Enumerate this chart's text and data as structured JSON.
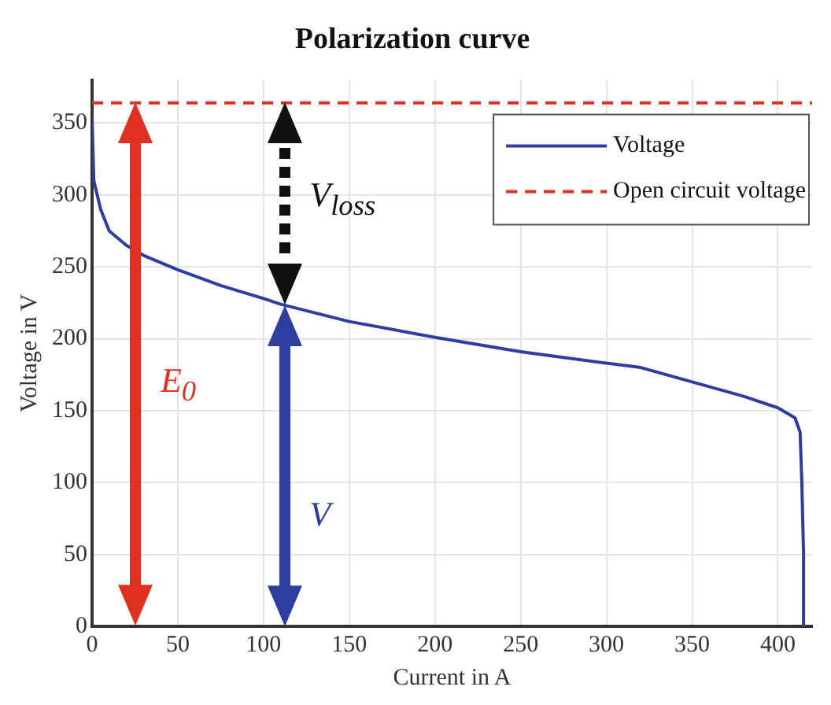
{
  "chart_data": {
    "type": "line",
    "title": "Polarization curve",
    "xlabel": "Current in A",
    "ylabel": "Voltage in V",
    "series": [
      {
        "name": "Voltage",
        "color": "#2e3ea0",
        "x": [
          0,
          1,
          3,
          5,
          10,
          20,
          30,
          50,
          75,
          100,
          110,
          150,
          200,
          250,
          300,
          320,
          350,
          380,
          400,
          410,
          413,
          414,
          415,
          415
        ],
        "values": [
          355,
          310,
          300,
          290,
          275,
          265,
          258,
          248,
          237,
          228,
          224,
          212,
          201,
          191,
          183,
          180,
          170,
          160,
          152,
          145,
          135,
          100,
          50,
          0
        ]
      }
    ],
    "ref_lines": [
      {
        "axis": "y",
        "value": 364,
        "label": "Open circuit voltage",
        "color": "#e03020",
        "line_style": "dashed"
      }
    ],
    "annotations": [
      "E$_{0}$",
      "V",
      "V$_{loss}$"
    ],
    "xlim": [
      0,
      420
    ],
    "ylim": [
      0,
      380
    ],
    "xticks": [
      0,
      50,
      100,
      150,
      200,
      250,
      300,
      350,
      400
    ],
    "yticks": [
      0,
      50,
      100,
      150,
      200,
      250,
      300,
      350
    ],
    "grid": true,
    "legend": "top right",
    "marker": "none",
    "line_style": "solid"
  }
}
